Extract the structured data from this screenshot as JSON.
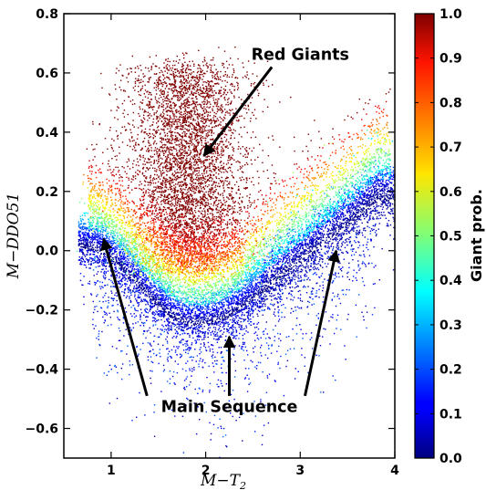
{
  "chart_data": {
    "type": "scatter",
    "title": "",
    "xlabel": "M−T",
    "xlabel_sub": "2",
    "ylabel": "M−DDO51",
    "xlim": [
      0.5,
      4.0
    ],
    "ylim": [
      -0.7,
      0.8
    ],
    "xticks": [
      1,
      2,
      3,
      4
    ],
    "yticks": [
      -0.6,
      -0.4,
      -0.2,
      0.0,
      0.2,
      0.4,
      0.6,
      0.8
    ],
    "ytick_labels": [
      "−0.6",
      "−0.4",
      "−0.2",
      "0.0",
      "0.2",
      "0.4",
      "0.6",
      "0.8"
    ],
    "grid": false,
    "colorbar": {
      "label": "Giant prob.",
      "range": [
        0.0,
        1.0
      ],
      "ticks": [
        "0.0",
        "0.1",
        "0.2",
        "0.3",
        "0.4",
        "0.5",
        "0.6",
        "0.7",
        "0.8",
        "0.9",
        "1.0"
      ],
      "colormap": "jet"
    },
    "main_sequence_locus": {
      "x": [
        0.7,
        0.85,
        1.0,
        1.2,
        1.4,
        1.6,
        1.8,
        2.0,
        2.2,
        2.4,
        2.6,
        2.8,
        3.0,
        3.2,
        3.4,
        3.6,
        3.8
      ],
      "y": [
        0.04,
        0.03,
        0.0,
        -0.06,
        -0.13,
        -0.19,
        -0.22,
        -0.22,
        -0.2,
        -0.16,
        -0.11,
        -0.06,
        -0.01,
        0.04,
        0.09,
        0.14,
        0.2
      ]
    },
    "giant_region": {
      "x_center": 1.8,
      "x_spread": 0.32,
      "y_min": -0.05,
      "y_max": 0.62
    },
    "annotations": [
      {
        "text": "Red Giants",
        "text_x": 3.0,
        "text_y": 0.645,
        "arrow_from": [
          2.7,
          0.62
        ],
        "arrow_to": [
          1.98,
          0.32
        ]
      },
      {
        "text": "Main Sequence",
        "text_x": 2.25,
        "text_y": -0.545,
        "arrows": [
          {
            "from": [
              1.38,
              -0.49
            ],
            "to": [
              0.92,
              0.04
            ]
          },
          {
            "from": [
              2.25,
              -0.49
            ],
            "to": [
              2.25,
              -0.29
            ]
          },
          {
            "from": [
              3.05,
              -0.49
            ],
            "to": [
              3.38,
              0.0
            ]
          }
        ]
      }
    ]
  }
}
